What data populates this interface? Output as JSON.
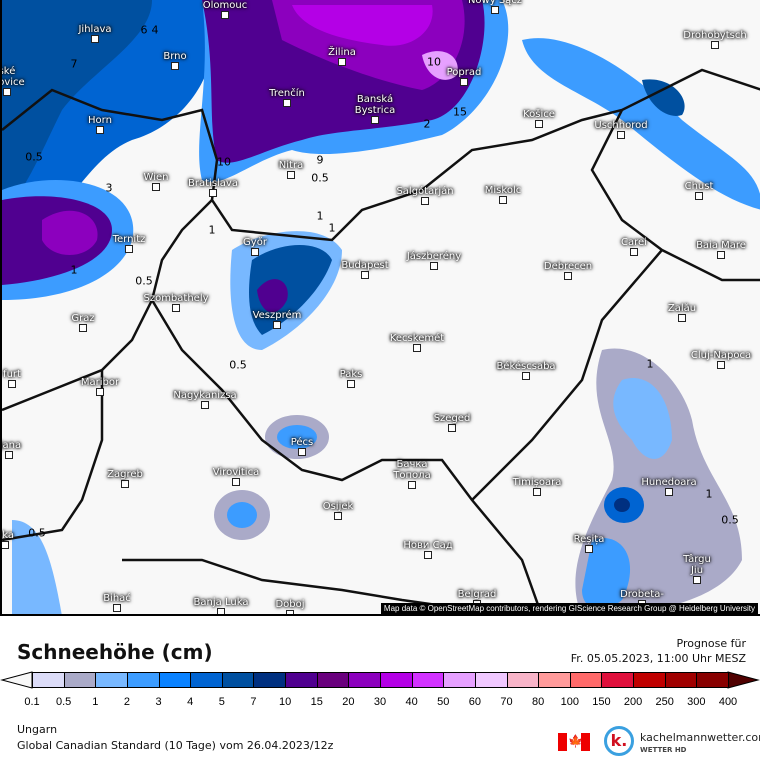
{
  "map": {
    "cities": [
      "Olomouc",
      "Nowy Sącz",
      "Drohobytsch",
      "Jihlava",
      "Brno",
      "Žilina",
      "Poprad",
      "ské\nějovice",
      "Trenčín",
      "Banská\nBystrica",
      "Košice",
      "Uschhorod",
      "Horn",
      "Nitra",
      "Wien",
      "Bratislava",
      "Salgótarján",
      "Miskolc",
      "Chust",
      "Ternitz",
      "Győr",
      "Budapest",
      "Jászberény",
      "Debrecen",
      "Carei",
      "Baia Mare",
      "Szombathely",
      "Zalău",
      "Graz",
      "Veszprém",
      "Kecskemét",
      "Cluj-Napoca",
      "Békéscsaba",
      "Paks",
      "furt",
      "Maribor",
      "Nagykanizsa",
      "Szeged",
      "ljana",
      "Pécs",
      "Zagreb",
      "Virovitica",
      "Бачка\nТопола",
      "Timișoara",
      "Hunedoara",
      "Osijek",
      "Reșița",
      "Târgu\nJiu",
      "Нови Сад",
      "eka",
      "Bihać",
      "Banja Luka",
      "Doboj",
      "Belgrad",
      "Drobeta-"
    ],
    "contour_labels": [
      "6",
      "4",
      "7",
      "3",
      "10",
      "1",
      "0.5",
      "9",
      "0.5",
      "1",
      "2",
      "15",
      "0.5",
      "1",
      "0.5",
      "1",
      "0.5",
      "10",
      "1",
      "0.5",
      "1"
    ],
    "attribution": "Map data © OpenStreetMap contributors, rendering GIScience Research Group @ Heidelberg University"
  },
  "header": {
    "title": "Schneehöhe (cm)",
    "forecast_label": "Prognose für",
    "forecast_time": "Fr. 05.05.2023, 11:00 Uhr MESZ"
  },
  "legend": {
    "ticks": [
      "0.1",
      "0.5",
      "1",
      "2",
      "3",
      "4",
      "5",
      "7",
      "10",
      "15",
      "20",
      "30",
      "40",
      "50",
      "60",
      "70",
      "80",
      "100",
      "150",
      "200",
      "250",
      "300",
      "400"
    ],
    "colors": [
      "#dcdcf8",
      "#aaaac8",
      "#78b8ff",
      "#3c9cff",
      "#0a82ff",
      "#0064d2",
      "#0050a0",
      "#003080",
      "#500090",
      "#6a007e",
      "#8c00be",
      "#b400e6",
      "#d232ff",
      "#e6a0ff",
      "#f0c8ff",
      "#f8b4c8",
      "#ff9a9a",
      "#ff6a6a",
      "#e0103c",
      "#c00000",
      "#a00000",
      "#880000"
    ],
    "under_color": "#f8f8f8",
    "over_color": "#500000"
  },
  "footer": {
    "region": "Ungarn",
    "model": "Global Canadian Standard (10 Tage) vom  26.04.2023/12z",
    "brand": "kachelmannwetter.com",
    "brand_sub": "WETTER HD",
    "logo_letter": "k.",
    "flag_icon": "canada-flag-icon"
  }
}
